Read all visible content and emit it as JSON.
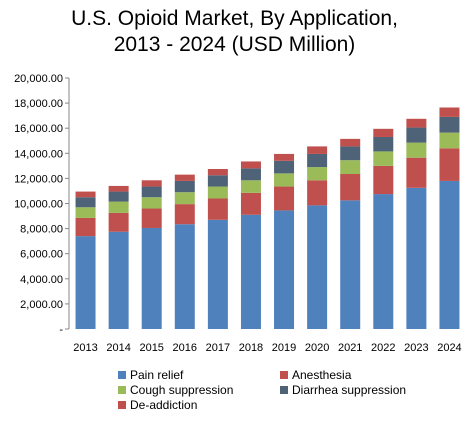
{
  "chart_data": {
    "type": "bar",
    "stacked": true,
    "title_lines": [
      "U.S. Opioid Market, By Application,",
      "2013 - 2024 (USD Million)"
    ],
    "categories": [
      "2013",
      "2014",
      "2015",
      "2016",
      "2017",
      "2018",
      "2019",
      "2020",
      "2021",
      "2022",
      "2023",
      "2024"
    ],
    "ylim": [
      0,
      20000
    ],
    "yticks": [
      "-",
      "2,000.00",
      "4,000.00",
      "6,000.00",
      "8,000.00",
      "10,000.00",
      "12,000.00",
      "14,000.00",
      "16,000.00",
      "18,000.00",
      "20,000.00"
    ],
    "grid": false,
    "legend_position": "bottom",
    "series": [
      {
        "name": "Pain relief",
        "color": "#4F81BD",
        "values": [
          7400,
          7750,
          8050,
          8350,
          8700,
          9100,
          9450,
          9850,
          10250,
          10750,
          11250,
          11800
        ]
      },
      {
        "name": "Anesthesia",
        "color": "#C0504D",
        "values": [
          1450,
          1500,
          1550,
          1600,
          1700,
          1750,
          1900,
          2000,
          2100,
          2250,
          2400,
          2600
        ]
      },
      {
        "name": "Cough suppression",
        "color": "#9BBB59",
        "values": [
          850,
          900,
          900,
          950,
          950,
          1000,
          1050,
          1050,
          1100,
          1150,
          1200,
          1250
        ]
      },
      {
        "name": "Diarrhea suppression",
        "color": "#4F6378",
        "values": [
          800,
          800,
          850,
          900,
          900,
          950,
          1000,
          1050,
          1100,
          1150,
          1200,
          1250
        ]
      },
      {
        "name": "De-addiction",
        "color": "#C0504D",
        "values": [
          450,
          450,
          500,
          500,
          500,
          550,
          550,
          600,
          600,
          650,
          700,
          750
        ]
      }
    ]
  }
}
